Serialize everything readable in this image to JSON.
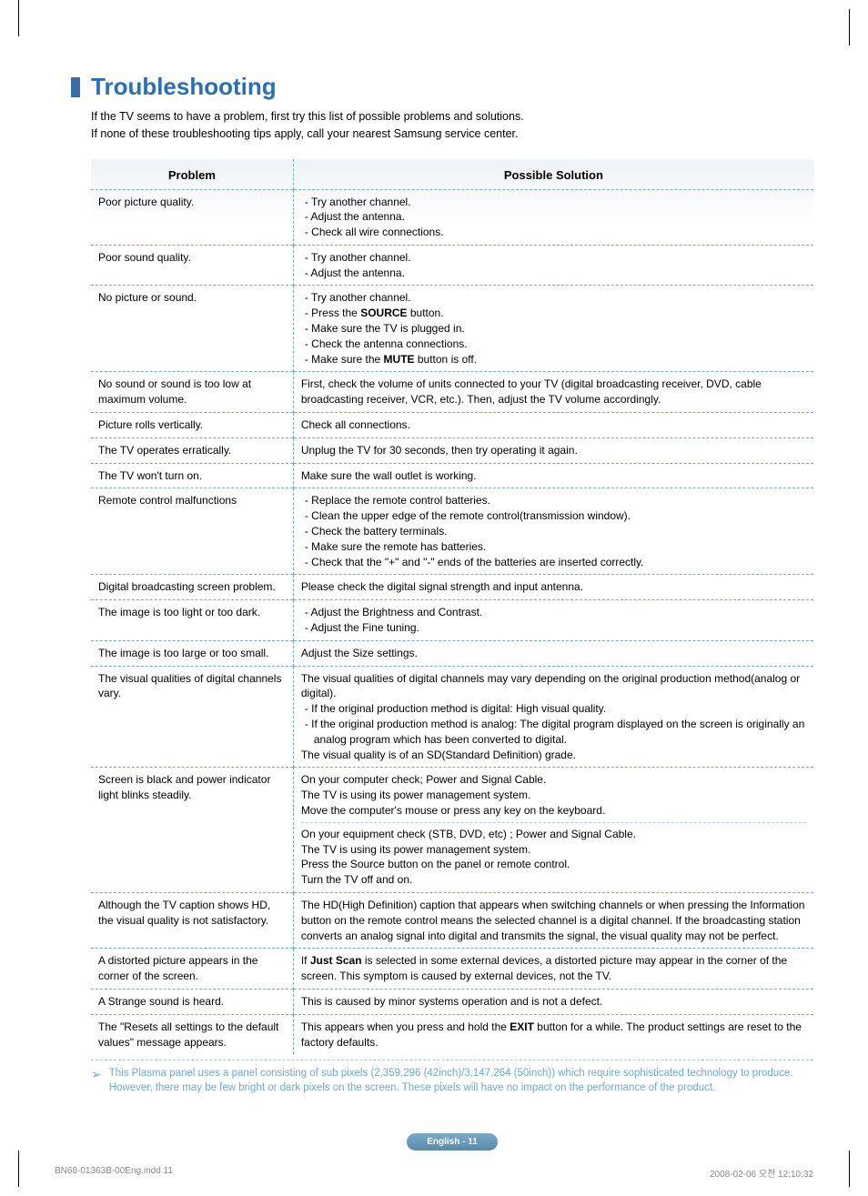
{
  "heading": "Troubleshooting",
  "intro_line1": "If the TV seems to have a problem, first try this list of possible problems and solutions.",
  "intro_line2": "If none of these troubleshooting tips apply, call your nearest Samsung service center.",
  "header_problem": "Problem",
  "header_solution": "Possible Solution",
  "rows": [
    {
      "problem": "Poor picture quality.",
      "type": "list",
      "items": [
        "Try another channel.",
        "Adjust the antenna.",
        "Check all wire connections."
      ]
    },
    {
      "problem": "Poor sound quality.",
      "type": "list",
      "items": [
        "Try another channel.",
        "Adjust the antenna."
      ]
    },
    {
      "problem": "No picture or sound.",
      "type": "list",
      "items": [
        "Try another channel.",
        "Press the <b>SOURCE</b> button.",
        "Make sure the TV is plugged in.",
        "Check the antenna connections.",
        "Make sure the <b>MUTE</b> button is off."
      ]
    },
    {
      "problem": "No sound or sound is too low at maximum volume.",
      "type": "text",
      "text": "First, check the volume of units connected to your TV (digital broadcasting receiver, DVD, cable broadcasting receiver, VCR, etc.). Then, adjust the TV volume accordingly."
    },
    {
      "problem": "Picture rolls vertically.",
      "type": "text",
      "text": "Check all connections."
    },
    {
      "problem": "The TV operates erratically.",
      "type": "text",
      "text": "Unplug the TV for 30 seconds, then try operating it again."
    },
    {
      "problem": "The TV won't turn on.",
      "type": "text",
      "text": "Make sure the wall outlet is working."
    },
    {
      "problem": "Remote control malfunctions",
      "type": "list",
      "items": [
        "Replace the remote control batteries.",
        "Clean the upper edge of the remote control(transmission window).",
        "Check the battery terminals.",
        "Make sure the remote has batteries.",
        "Check that the \"+\" and \"-\" ends of the batteries are inserted correctly."
      ]
    },
    {
      "problem": "Digital broadcasting screen problem.",
      "type": "text",
      "text": "Please check the digital signal strength and input antenna."
    },
    {
      "problem": "The image is too light or too dark.",
      "type": "list",
      "items": [
        "Adjust the Brightness and Contrast.",
        "Adjust the Fine tuning."
      ]
    },
    {
      "problem": "The image is too large or too small.",
      "type": "text",
      "text": "Adjust the Size settings."
    },
    {
      "problem": "The visual qualities of digital channels vary.",
      "type": "mixed",
      "pre": "The visual qualities of digital channels may vary depending on the original production method(analog or digital).",
      "items": [
        "If the original production method is digital: High visual quality.",
        "If the original production method is analog: The digital program displayed on the screen is originally an analog program which has been converted to digital."
      ],
      "post": "The visual quality is of an SD(Standard Definition) grade."
    },
    {
      "problem": "Screen is black and power indicator light blinks steadily.",
      "type": "split",
      "block1": "On your computer check; Power and Signal Cable.<br>The TV is using its power management system.<br>Move the computer's mouse or press any key on the keyboard.",
      "block2": "On your equipment check (STB, DVD, etc) ; Power and Signal Cable.<br>The TV is using its power management system.<br>Press the Source button on the panel or remote control.<br>Turn the TV off and on."
    },
    {
      "problem": "Although the TV caption shows HD, the visual quality is not satisfactory.",
      "type": "text",
      "text": "The HD(High Definition) caption that appears when switching channels or when pressing the Information button on the remote control means the selected channel is a digital channel. If the broadcasting station converts an analog signal into digital and transmits the signal, the visual quality may not be perfect."
    },
    {
      "problem": "A distorted picture appears in the corner of the screen.",
      "type": "html",
      "text": "If <b>Just Scan</b> is selected in some external devices, a distorted picture may appear in the corner of the screen. This symptom is caused by external devices, not the TV."
    },
    {
      "problem": "A Strange sound is heard.",
      "type": "text",
      "text": "This is caused by minor systems operation and is not a defect."
    },
    {
      "problem": "The \"Resets all settings to the default values\" message appears.",
      "type": "html",
      "text": "This appears when you press and hold the <b>EXIT</b> button for a while. The product settings are reset to the factory defaults."
    }
  ],
  "footnote": "This Plasma panel uses a panel consisting of sub pixels (2,359,296 (42inch)/3,147,264 (50inch)) which require sophisticated technology to produce. However, there may be few bright or dark pixels on the screen. These pixels will have no impact on the performance of the product.",
  "page_label": "English - 11",
  "footer_left": "BN68-01363B-00Eng.indd   11",
  "footer_right": "2008-02-06   오전 12:10:32"
}
